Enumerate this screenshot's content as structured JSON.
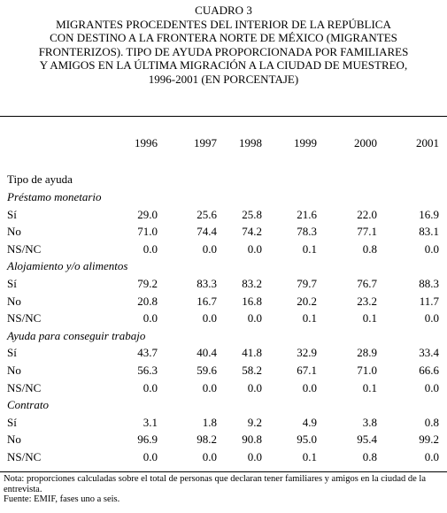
{
  "title_lines": [
    "CUADRO 3",
    "MIGRANTES PROCEDENTES DEL INTERIOR DE LA REPÚBLICA",
    "CON DESTINO A LA FRONTERA NORTE DE MÉXICO (MIGRANTES",
    "FRONTERIZOS). TIPO DE AYUDA PROPORCIONADA POR FAMILIARES",
    "Y AMIGOS EN LA ÚLTIMA MIGRACIÓN A LA CIUDAD DE MUESTREO,",
    "1996-2001 (EN PORCENTAJE)"
  ],
  "years": [
    "1996",
    "1997",
    "1998",
    "1999",
    "2000",
    "2001"
  ],
  "header_label": "Tipo de ayuda",
  "groups": [
    {
      "name": "Préstamo monetario",
      "rows": [
        {
          "label": "Sí",
          "values": [
            "29.0",
            "25.6",
            "25.8",
            "21.6",
            "22.0",
            "16.9"
          ]
        },
        {
          "label": "No",
          "values": [
            "71.0",
            "74.4",
            "74.2",
            "78.3",
            "77.1",
            "83.1"
          ]
        },
        {
          "label": "NS/NC",
          "values": [
            "0.0",
            "0.0",
            "0.0",
            "0.1",
            "0.8",
            "0.0"
          ]
        }
      ]
    },
    {
      "name": "Alojamiento y/o alimentos",
      "rows": [
        {
          "label": "Sí",
          "values": [
            "79.2",
            "83.3",
            "83.2",
            "79.7",
            "76.7",
            "88.3"
          ]
        },
        {
          "label": "No",
          "values": [
            "20.8",
            "16.7",
            "16.8",
            "20.2",
            "23.2",
            "11.7"
          ]
        },
        {
          "label": "NS/NC",
          "values": [
            "0.0",
            "0.0",
            "0.0",
            "0.1",
            "0.1",
            "0.0"
          ]
        }
      ]
    },
    {
      "name": "Ayuda para conseguir trabajo",
      "rows": [
        {
          "label": "Sí",
          "values": [
            "43.7",
            "40.4",
            "41.8",
            "32.9",
            "28.9",
            "33.4"
          ]
        },
        {
          "label": "No",
          "values": [
            "56.3",
            "59.6",
            "58.2",
            "67.1",
            "71.0",
            "66.6"
          ]
        },
        {
          "label": "NS/NC",
          "values": [
            "0.0",
            "0.0",
            "0.0",
            "0.0",
            "0.1",
            "0.0"
          ]
        }
      ]
    },
    {
      "name": "Contrato",
      "rows": [
        {
          "label": "Sí",
          "values": [
            "3.1",
            "1.8",
            "9.2",
            "4.9",
            "3.8",
            "0.8"
          ]
        },
        {
          "label": "No",
          "values": [
            "96.9",
            "98.2",
            "90.8",
            "95.0",
            "95.4",
            "99.2"
          ]
        },
        {
          "label": "NS/NC",
          "values": [
            "0.0",
            "0.0",
            "0.0",
            "0.1",
            "0.8",
            "0.0"
          ]
        }
      ]
    }
  ],
  "note": "Nota: proporciones calculadas sobre el total de personas que declaran tener familiares y amigos en la ciudad de la entrevista.",
  "source": "Fuente: EMIF, fases uno a seis."
}
